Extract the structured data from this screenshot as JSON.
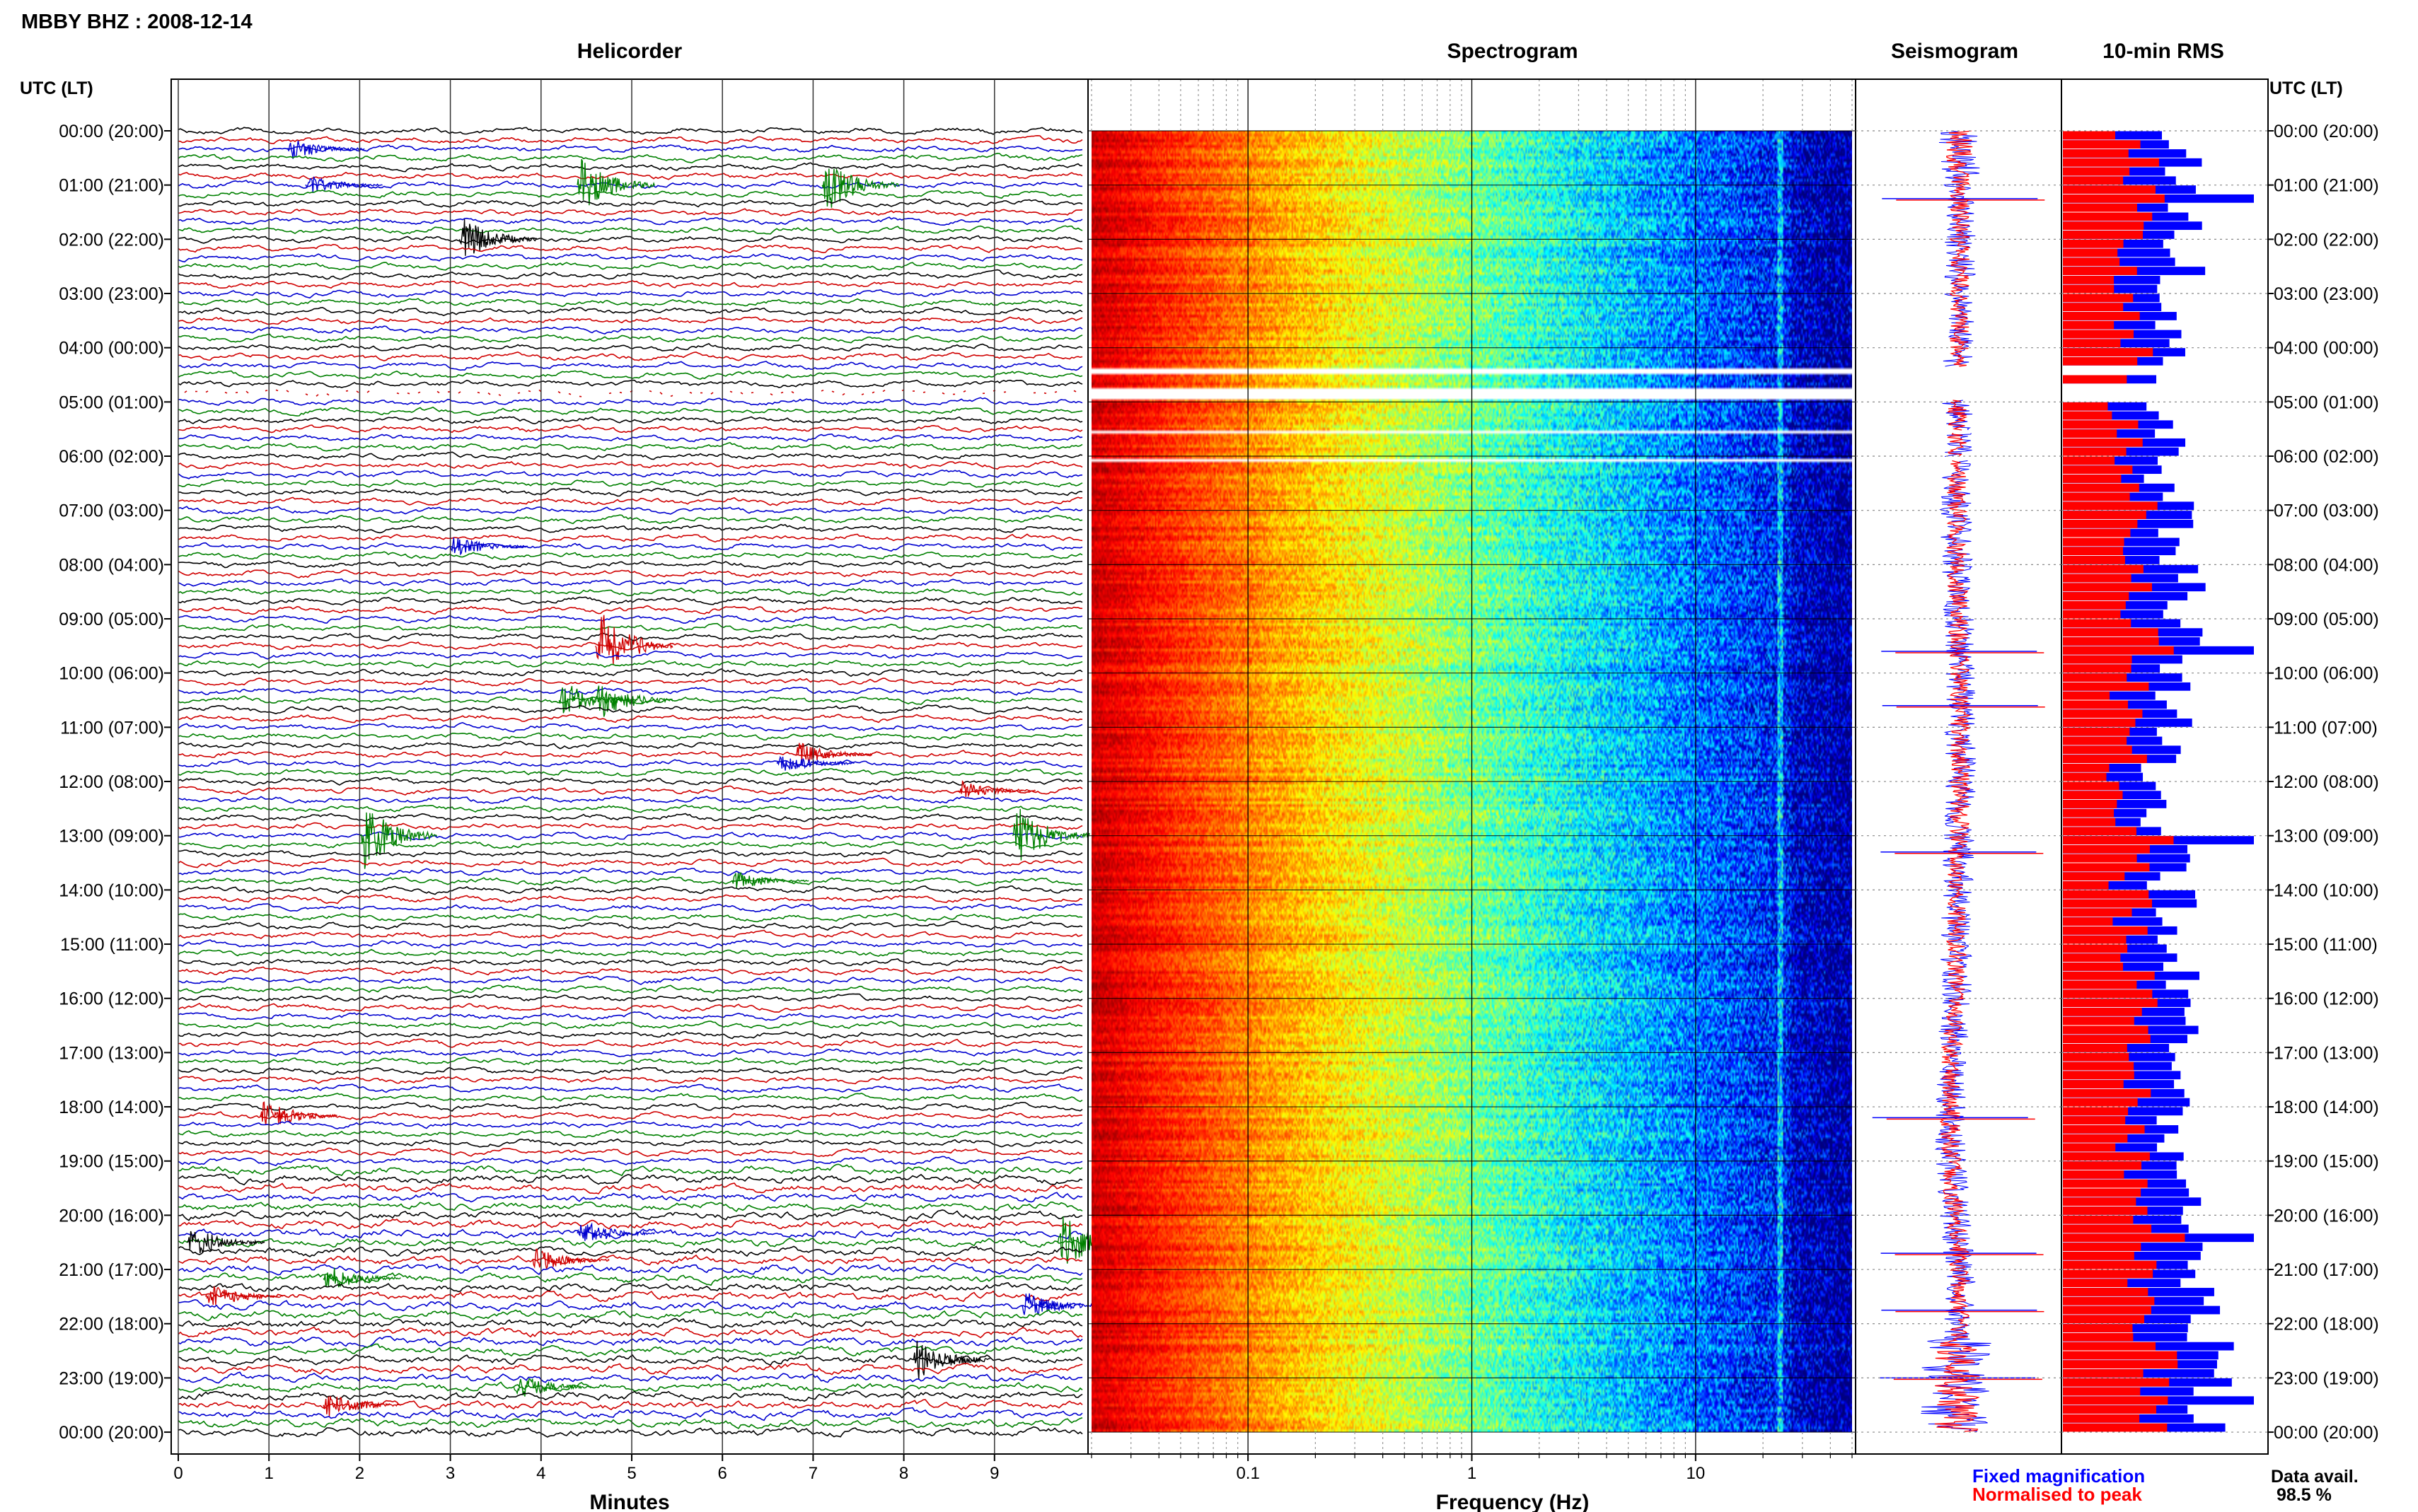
{
  "title": "MBBY BHZ : 2008-12-14",
  "time_axis_label_left": "UTC (LT)",
  "time_axis_label_right": "UTC (LT)",
  "panels": {
    "helicorder": "Helicorder",
    "spectrogram": "Spectrogram",
    "seismogram": "Seismogram",
    "rms": "10-min RMS"
  },
  "axes": {
    "minutes_label": "Minutes",
    "frequency_label": "Frequency (Hz)"
  },
  "legend": {
    "fixed": "Fixed magnification",
    "normalised": "Normalised to peak",
    "fixed_color": "#0000ff",
    "normalised_color": "#ff0000"
  },
  "data_avail_label": "Data avail.",
  "data_avail_value": "98.5 %",
  "chart_data": {
    "type": "heatmap",
    "time_labels": [
      "00:00 (20:00)",
      "01:00 (21:00)",
      "02:00 (22:00)",
      "03:00 (23:00)",
      "04:00 (00:00)",
      "05:00 (01:00)",
      "06:00 (02:00)",
      "07:00 (03:00)",
      "08:00 (04:00)",
      "09:00 (05:00)",
      "10:00 (06:00)",
      "11:00 (07:00)",
      "12:00 (08:00)",
      "13:00 (09:00)",
      "14:00 (10:00)",
      "15:00 (11:00)",
      "16:00 (12:00)",
      "17:00 (13:00)",
      "18:00 (14:00)",
      "19:00 (15:00)",
      "20:00 (16:00)",
      "21:00 (17:00)",
      "22:00 (18:00)",
      "23:00 (19:00)",
      "00:00 (20:00)"
    ],
    "minute_ticks": [
      "0",
      "1",
      "2",
      "3",
      "4",
      "5",
      "6",
      "7",
      "8",
      "9"
    ],
    "frequency_ticks": [
      "0.1",
      "1",
      "10"
    ],
    "frequency_range": [
      0.02,
      50
    ],
    "helicorder_colors": [
      "#000000",
      "#d00000",
      "#0000d0",
      "#008000"
    ],
    "data_gaps_hours": [
      [
        4.38,
        4.47
      ],
      [
        4.72,
        4.92
      ],
      [
        5.52,
        5.57
      ],
      [
        6.02,
        6.07
      ]
    ],
    "helicorder_events": [
      {
        "hour": 0.33,
        "minute": 1.2,
        "color": "#0000d0",
        "amp": 0.4
      },
      {
        "hour": 1.0,
        "minute": 4.4,
        "color": "#008000",
        "amp": 1.0
      },
      {
        "hour": 1.0,
        "minute": 7.1,
        "color": "#008000",
        "amp": 1.0
      },
      {
        "hour": 1.0,
        "minute": 1.4,
        "color": "#0000d0",
        "amp": 0.35
      },
      {
        "hour": 2.0,
        "minute": 3.1,
        "color": "#000000",
        "amp": 0.8
      },
      {
        "hour": 7.67,
        "minute": 3.0,
        "color": "#0000d0",
        "amp": 0.4
      },
      {
        "hour": 9.5,
        "minute": 4.6,
        "color": "#d00000",
        "amp": 1.3
      },
      {
        "hour": 10.5,
        "minute": 4.2,
        "color": "#008000",
        "amp": 0.7
      },
      {
        "hour": 10.5,
        "minute": 4.6,
        "color": "#008000",
        "amp": 0.7
      },
      {
        "hour": 11.5,
        "minute": 6.8,
        "color": "#d00000",
        "amp": 0.45
      },
      {
        "hour": 11.67,
        "minute": 6.6,
        "color": "#0000d0",
        "amp": 0.4
      },
      {
        "hour": 12.1,
        "minute": 8.6,
        "color": "#d00000",
        "amp": 0.35
      },
      {
        "hour": 13.0,
        "minute": 2.0,
        "color": "#008000",
        "amp": 1.3
      },
      {
        "hour": 13.0,
        "minute": 9.2,
        "color": "#008000",
        "amp": 1.1
      },
      {
        "hour": 13.83,
        "minute": 6.1,
        "color": "#008000",
        "amp": 0.35
      },
      {
        "hour": 18.17,
        "minute": 0.9,
        "color": "#d00000",
        "amp": 0.6
      },
      {
        "hour": 20.33,
        "minute": 4.4,
        "color": "#0000d0",
        "amp": 0.5
      },
      {
        "hour": 20.5,
        "minute": 0.1,
        "color": "#000000",
        "amp": 0.6
      },
      {
        "hour": 20.5,
        "minute": 9.7,
        "color": "#008000",
        "amp": 1.1
      },
      {
        "hour": 20.83,
        "minute": 3.9,
        "color": "#d00000",
        "amp": 0.45
      },
      {
        "hour": 21.17,
        "minute": 1.6,
        "color": "#008000",
        "amp": 0.5
      },
      {
        "hour": 21.5,
        "minute": 0.3,
        "color": "#d00000",
        "amp": 0.45
      },
      {
        "hour": 21.67,
        "minute": 9.3,
        "color": "#0000d0",
        "amp": 0.55
      },
      {
        "hour": 22.67,
        "minute": 8.1,
        "color": "#000000",
        "amp": 0.8
      },
      {
        "hour": 23.17,
        "minute": 3.7,
        "color": "#008000",
        "amp": 0.5
      },
      {
        "hour": 23.5,
        "minute": 1.6,
        "color": "#d00000",
        "amp": 0.5
      }
    ],
    "seismogram_spikes_hours": [
      1.25,
      9.6,
      10.6,
      13.3,
      18.2,
      20.7,
      21.75,
      23.0
    ],
    "rms_series": [
      {
        "name": "Fixed magnification",
        "color": "#0000ff"
      },
      {
        "name": "Normalised to peak",
        "color": "#ff0000"
      }
    ]
  }
}
